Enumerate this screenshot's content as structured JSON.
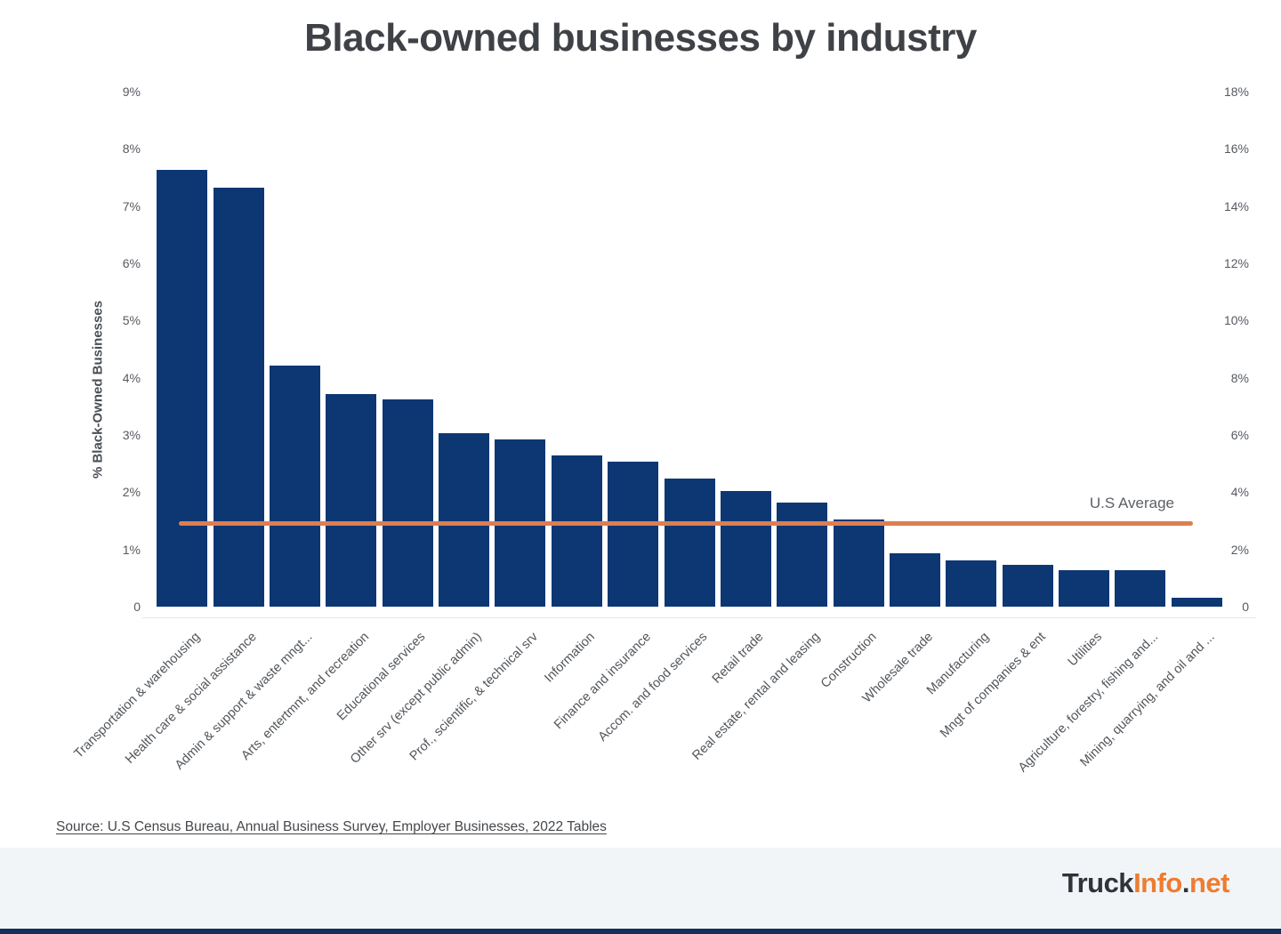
{
  "chart_data": {
    "type": "bar",
    "title": "Black-owned businesses by industry",
    "ylabel": "% Black-Owned Businesses",
    "categories": [
      "Transportation & warehousing",
      "Health care & social assistance",
      "Admin & support & waste mngt...",
      "Arts, entertmnt, and recreation",
      "Educational services",
      "Other srv (except public admin)",
      "Prof., scientific, & technical srv",
      "Information",
      "Finance and insurance",
      "Accom. and food services",
      "Retail trade",
      "Real estate, rental and leasing",
      "Construction",
      "Wholesale trade",
      "Manufacturing",
      "Mngt of companies & ent",
      "Utilities",
      "Agriculture, forestry, fishing and...",
      "Mining, quarrying, and oil and ..."
    ],
    "values": [
      7.63,
      7.32,
      4.21,
      3.71,
      3.62,
      3.03,
      2.92,
      2.64,
      2.53,
      2.24,
      2.02,
      1.82,
      1.52,
      0.93,
      0.81,
      0.73,
      0.64,
      0.64,
      0.16
    ],
    "us_average": {
      "label": "U.S Average",
      "value": 1.45
    },
    "left_axis_ticks": {
      "labels": [
        "9%",
        "8%",
        "7%",
        "6%",
        "5%",
        "4%",
        "3%",
        "2%",
        "1%",
        "0"
      ],
      "values": [
        9,
        8,
        7,
        6,
        5,
        4,
        3,
        2,
        1,
        0
      ]
    },
    "right_axis_ticks": {
      "labels": [
        "18%",
        "16%",
        "14%",
        "12%",
        "10%",
        "8%",
        "6%",
        "4%",
        "2%",
        "0"
      ],
      "values": [
        18,
        16,
        14,
        12,
        10,
        8,
        6,
        4,
        2,
        0
      ]
    },
    "ylim_left": [
      0,
      9
    ],
    "ylim_right": [
      0,
      18
    ],
    "grid": false,
    "legend_position": "none",
    "bar_color": "#0D3773",
    "line_color": "#DD7E51"
  },
  "source": {
    "text": "Source: U.S Census Bureau, Annual Business Survey, Employer Businesses, 2022 Tables"
  },
  "footer": {
    "logo_dark": "Truck",
    "logo_orange": "Info",
    "logo_dot": ".",
    "logo_tld": "net"
  }
}
